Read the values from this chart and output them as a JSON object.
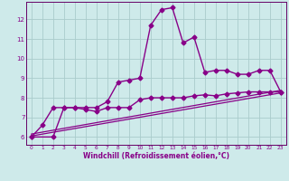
{
  "xlabel": "Windchill (Refroidissement éolien,°C)",
  "background_color": "#ceeaea",
  "grid_color": "#aacccc",
  "line_color": "#880088",
  "spine_color": "#660066",
  "xlim": [
    -0.5,
    23.5
  ],
  "ylim": [
    5.6,
    12.9
  ],
  "xticks": [
    0,
    1,
    2,
    3,
    4,
    5,
    6,
    7,
    8,
    9,
    10,
    11,
    12,
    13,
    14,
    15,
    16,
    17,
    18,
    19,
    20,
    21,
    22,
    23
  ],
  "yticks": [
    6,
    7,
    8,
    9,
    10,
    11,
    12
  ],
  "series": [
    {
      "x": [
        0,
        1,
        2,
        3,
        4,
        5,
        6,
        7,
        8,
        9,
        10,
        11,
        12,
        13,
        14,
        15,
        16,
        17,
        18,
        19,
        20,
        21,
        22,
        23
      ],
      "y": [
        6.0,
        6.6,
        7.5,
        7.5,
        7.5,
        7.5,
        7.5,
        7.8,
        8.8,
        8.9,
        9.0,
        11.7,
        12.5,
        12.6,
        10.8,
        11.1,
        9.3,
        9.4,
        9.4,
        9.2,
        9.2,
        9.4,
        9.4,
        8.3
      ],
      "marker": "D",
      "markersize": 2.5,
      "linewidth": 1.0
    },
    {
      "x": [
        0,
        2,
        3,
        4,
        5,
        6,
        7,
        8,
        9,
        10,
        11,
        12,
        13,
        14,
        15,
        16,
        17,
        18,
        19,
        20,
        21,
        22,
        23
      ],
      "y": [
        6.0,
        6.0,
        7.5,
        7.5,
        7.4,
        7.3,
        7.5,
        7.5,
        7.5,
        7.9,
        8.0,
        8.0,
        8.0,
        8.0,
        8.1,
        8.15,
        8.1,
        8.2,
        8.25,
        8.3,
        8.3,
        8.3,
        8.3
      ],
      "marker": "D",
      "markersize": 2.5,
      "linewidth": 1.0
    },
    {
      "x": [
        0,
        23
      ],
      "y": [
        6.05,
        8.25
      ],
      "marker": null,
      "linewidth": 0.9
    },
    {
      "x": [
        0,
        23
      ],
      "y": [
        6.15,
        8.38
      ],
      "marker": null,
      "linewidth": 0.9
    }
  ]
}
